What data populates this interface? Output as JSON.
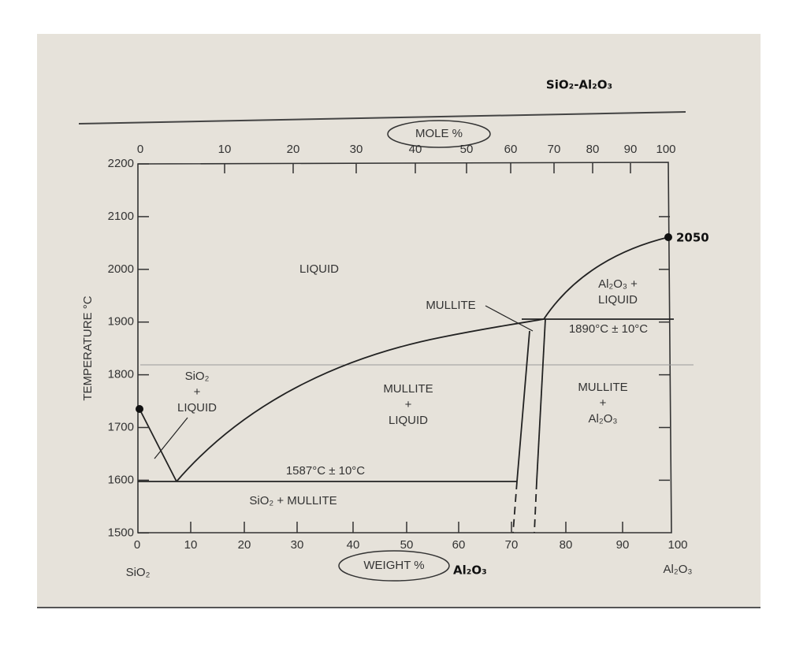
{
  "title": "SiO₂-Al₂O₃",
  "top_axis": {
    "label": "MOLE %",
    "ticks": [
      "0",
      "10",
      "20",
      "30",
      "40",
      "50",
      "60",
      "70",
      "80",
      "90",
      "100"
    ]
  },
  "bottom_axis": {
    "label": "WEIGHT %",
    "component": "Al₂O₃",
    "ticks": [
      "0",
      "10",
      "20",
      "30",
      "40",
      "50",
      "60",
      "70",
      "80",
      "90",
      "100"
    ],
    "left_end": "SiO₂",
    "right_end": "Al₂O₃"
  },
  "left_axis": {
    "label": "TEMPERATURE °C",
    "ticks": [
      "2200",
      "2100",
      "2000",
      "1900",
      "1800",
      "1700",
      "1600",
      "1500"
    ]
  },
  "point_label": "2050",
  "regions": {
    "liquid": [
      "LIQUID"
    ],
    "sio2_liquid": [
      "SiO₂",
      "+",
      "LIQUID"
    ],
    "mullite_liquid": [
      "MULLITE",
      "+",
      "LIQUID"
    ],
    "mullite_al2o3": [
      "MULLITE",
      "+",
      "Al₂O₃"
    ],
    "al2o3_liquid": [
      "Al₂O₃ +",
      "LIQUID"
    ],
    "sio2_mullite": [
      "SiO₂ + MULLITE"
    ],
    "mullite": [
      "MULLITE"
    ]
  },
  "eutectic_label": "1587°C ± 10°C",
  "peritectic_label": "1890°C ± 10°C"
}
